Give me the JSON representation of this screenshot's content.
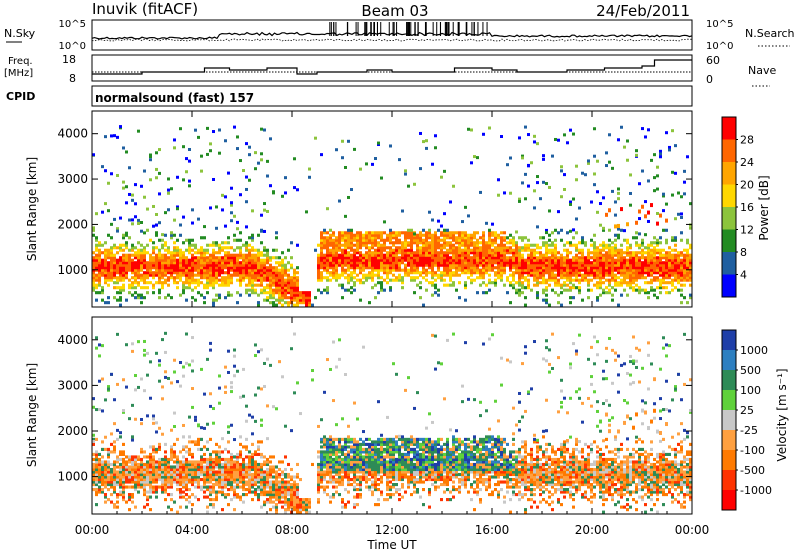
{
  "header": {
    "station": "Inuvik (fitACF)",
    "beam": "Beam 03",
    "date": "24/Feb/2011"
  },
  "params": {
    "nsky_label": "N.Sky",
    "nsearch_label": "N.Search",
    "freq_label_line1": "Freq.",
    "freq_label_line2": "[MHz]",
    "nave_label": "Nave",
    "cpid_label": "CPID",
    "cpid_value": "normalsound (fast) 157",
    "noise_ticks_left": [
      "10^5",
      "10^0"
    ],
    "noise_ticks_right": [
      "10^5",
      "10^0"
    ],
    "freq_ticks": [
      "18",
      "8"
    ],
    "nave_ticks": [
      "60",
      "0"
    ]
  },
  "chart_data": [
    {
      "type": "heatmap",
      "name": "power",
      "ylabel": "Slant Range [km]",
      "y_ticks": [
        1000,
        2000,
        3000,
        4000
      ],
      "ylim": [
        180,
        4500
      ],
      "colorbar_label": "Power [dB]",
      "colorbar_ticks": [
        "28",
        "24",
        "20",
        "16",
        "12",
        "8",
        "4"
      ],
      "colors": [
        "#ff0000",
        "#ff6600",
        "#ffa500",
        "#ffd700",
        "#8cc43c",
        "#228b22",
        "#1f5fa0",
        "#0000ff"
      ],
      "xlim": [
        "00:00",
        "24:00"
      ]
    },
    {
      "type": "heatmap",
      "name": "velocity",
      "ylabel": "Slant Range [km]",
      "y_ticks": [
        1000,
        2000,
        3000,
        4000
      ],
      "ylim": [
        180,
        4500
      ],
      "colorbar_label": "Velocity [m s⁻¹]",
      "colorbar_ticks": [
        "1000",
        "500",
        "100",
        "25",
        "-25",
        "-100",
        "-500",
        "-1000"
      ],
      "colors": [
        "#1f3fa8",
        "#2d7fc0",
        "#2e8b57",
        "#5fd13a",
        "#c8c8c8",
        "#ffa040",
        "#ff7a00",
        "#ff3300",
        "#ff0000"
      ],
      "xlim": [
        "00:00",
        "24:00"
      ]
    }
  ],
  "x_axis": {
    "label": "Time UT",
    "ticks": [
      "00:00",
      "04:00",
      "08:00",
      "12:00",
      "16:00",
      "20:00",
      "00:00"
    ]
  }
}
